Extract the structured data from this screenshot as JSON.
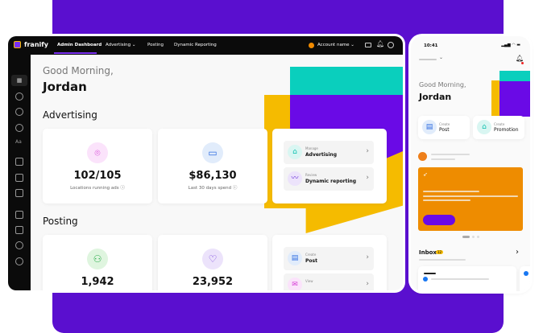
{
  "brand": "franify",
  "nav": {
    "items": [
      "Admin Dashboard",
      "Advertising",
      "Posting",
      "Dynamic Reporting"
    ],
    "active": 0,
    "account": "Account name"
  },
  "greeting": "Good Morning,",
  "user": "Jordan",
  "advertising": {
    "title": "Advertising",
    "stats": [
      {
        "value": "102/105",
        "label": "Locations running ads",
        "icon": "location-pin-icon"
      },
      {
        "value": "$86,130",
        "label": "Last 30 days spend",
        "icon": "credit-card-icon"
      }
    ],
    "actions": [
      {
        "kicker": "Manage",
        "label": "Advertising",
        "icon": "tag-icon"
      },
      {
        "kicker": "Review",
        "label": "Dynamic reporting",
        "icon": "trend-icon"
      }
    ]
  },
  "posting": {
    "title": "Posting",
    "stats": [
      {
        "value": "1,942",
        "icon": "users-icon"
      },
      {
        "value": "23,952",
        "icon": "heart-icon"
      }
    ],
    "actions": [
      {
        "kicker": "Create",
        "label": "Post",
        "icon": "post-icon"
      },
      {
        "kicker": "View",
        "label": "",
        "icon": "mail-icon"
      }
    ]
  },
  "phone": {
    "time": "10:41",
    "greeting": "Good Morning,",
    "user": "Jordan",
    "actions": [
      {
        "kicker": "Create",
        "label": "Post"
      },
      {
        "kicker": "Create",
        "label": "Promotion"
      }
    ],
    "inbox": "Inbox",
    "inbox_badge": "12"
  },
  "colors": {
    "purple": "#5a0fcf",
    "teal": "#0acfbd",
    "yellow": "#f5bb00",
    "orange": "#ee8c00"
  }
}
